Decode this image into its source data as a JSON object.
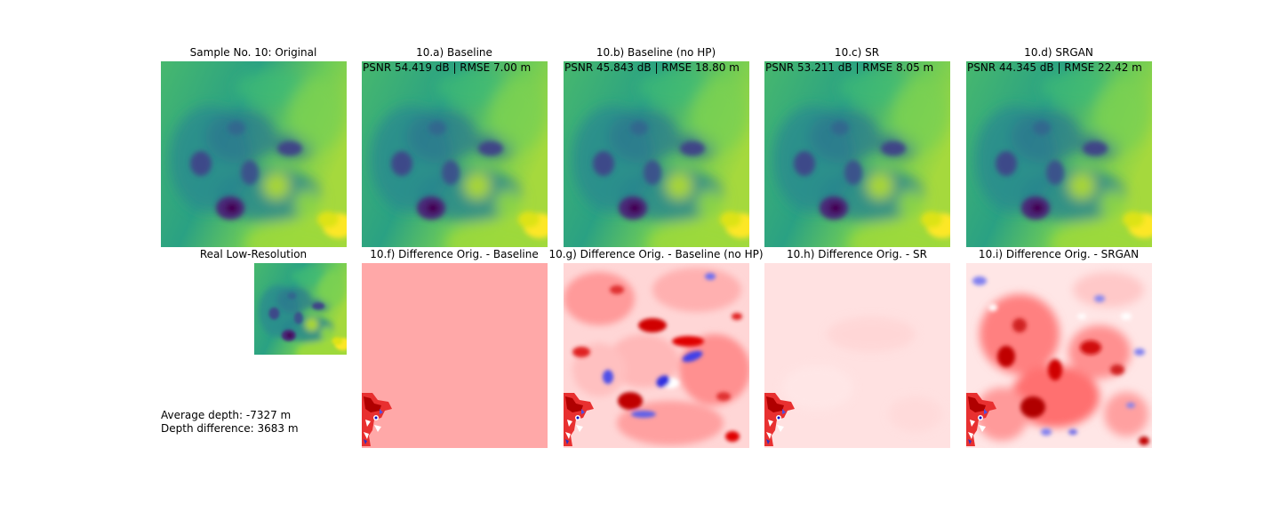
{
  "figure": {
    "titles": {
      "original": "Sample No. 10: Original",
      "baseline": "10.a) Baseline",
      "baseline_nohp": "10.b) Baseline (no HP)",
      "sr": "10.c) SR",
      "srgan": "10.d) SRGAN",
      "lowres": "Real Low-Resolution",
      "diff_baseline": "10.f) Difference Orig. - Baseline",
      "diff_baseline_nohp": "10.g) Difference Orig. - Baseline (no HP)",
      "diff_sr": "10.h) Difference Orig. - SR",
      "diff_srgan": "10.i) Difference Orig. - SRGAN"
    },
    "metrics": {
      "baseline": "PSNR 54.419 dB | RMSE 7.00 m",
      "baseline_nohp": "PSNR 45.843 dB | RMSE 18.80 m",
      "sr": "PSNR 53.211 dB | RMSE 8.05 m",
      "srgan": "PSNR 44.345 dB | RMSE 22.42 m"
    },
    "stats": {
      "avg_depth": "Average depth: -7327 m",
      "depth_diff": "Depth difference: 3683 m"
    },
    "colormaps": {
      "terrain": "viridis",
      "difference": "bwr"
    },
    "colors": {
      "viridis_low": "#440154",
      "viridis_mid": "#21918c",
      "viridis_high": "#fde725",
      "diff_positive": "#d60000",
      "diff_negative": "#3030e0",
      "diff_baseline_fill": "#ffa8a8",
      "diff_sr_fill": "#ffe1e1"
    }
  }
}
